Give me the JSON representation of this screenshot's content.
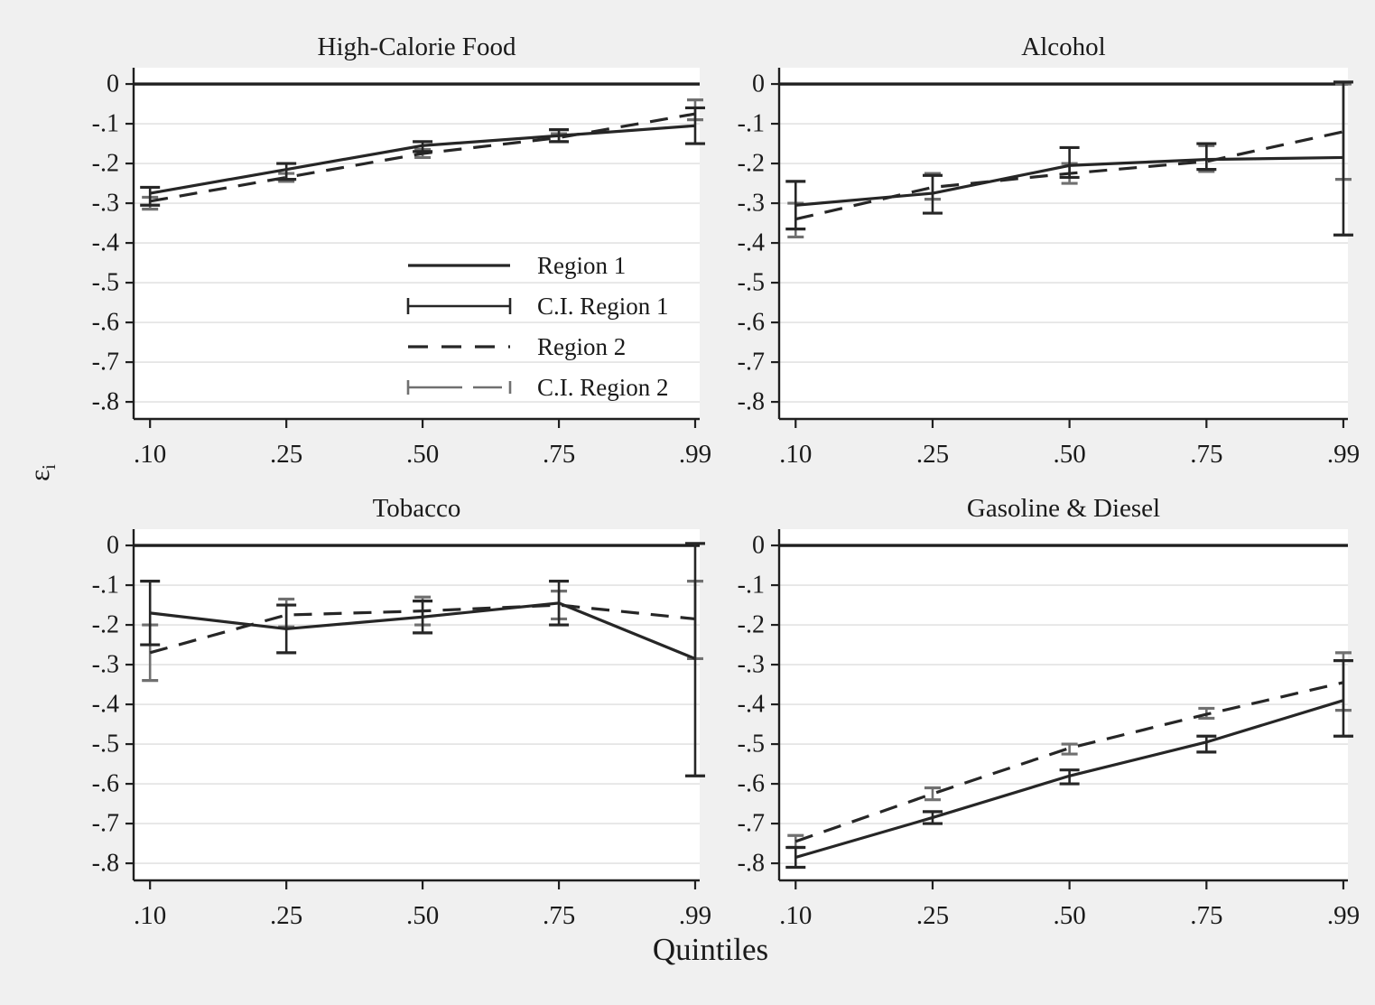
{
  "figure": {
    "x_axis_label": "Quintiles",
    "y_axis_label": {
      "symbol": "ε",
      "subscript": "i"
    },
    "background_color": "#f0f0f0",
    "plot_background_color": "#ffffff"
  },
  "colors": {
    "dark_line": "#262626",
    "gray_ci": "#707070",
    "gridline": "#e3e3e3",
    "axis": "#1f1f1f",
    "zero_line": "#1f1f1f",
    "text": "#1a1a1a"
  },
  "legend": {
    "location": "inside lower-right of first panel",
    "items": [
      {
        "label": "Region 1",
        "style": "solid",
        "color": "dark"
      },
      {
        "label": "C.I. Region 1",
        "style": "capped-solid",
        "color": "dark"
      },
      {
        "label": "Region 2",
        "style": "dashed",
        "color": "dark"
      },
      {
        "label": "C.I. Region 2",
        "style": "capped-dashed",
        "color": "gray"
      }
    ]
  },
  "chart_data": [
    {
      "type": "line",
      "title": "High-Calorie Food",
      "grid": "horizontal",
      "has_legend": true,
      "x_values": [
        0.1,
        0.25,
        0.5,
        0.75,
        0.99
      ],
      "x_tick_labels": [
        ".10",
        ".25",
        ".50",
        ".75",
        ".99"
      ],
      "y_ticks": [
        0,
        -0.1,
        -0.2,
        -0.3,
        -0.4,
        -0.5,
        -0.6,
        -0.7,
        -0.8
      ],
      "y_tick_labels": [
        "0",
        "-.1",
        "-.2",
        "-.3",
        "-.4",
        "-.5",
        "-.6",
        "-.7",
        "-.8"
      ],
      "ylim": [
        0.041,
        -0.843
      ],
      "series": [
        {
          "name": "Region 1",
          "line": "solid",
          "color": "dark",
          "values": [
            -0.275,
            -0.215,
            -0.155,
            -0.13,
            -0.105
          ],
          "ci_low": [
            -0.305,
            -0.24,
            -0.17,
            -0.145,
            -0.15
          ],
          "ci_high": [
            -0.26,
            -0.2,
            -0.145,
            -0.115,
            -0.06
          ]
        },
        {
          "name": "Region 2",
          "line": "dashed",
          "color": "dark",
          "ci_color": "gray",
          "values": [
            -0.295,
            -0.235,
            -0.175,
            -0.135,
            -0.075
          ],
          "ci_low": [
            -0.315,
            -0.245,
            -0.185,
            -0.145,
            -0.09
          ],
          "ci_high": [
            -0.285,
            -0.225,
            -0.165,
            -0.125,
            -0.04
          ]
        }
      ]
    },
    {
      "type": "line",
      "title": "Alcohol",
      "grid": "horizontal",
      "has_legend": false,
      "x_values": [
        0.1,
        0.25,
        0.5,
        0.75,
        0.99
      ],
      "x_tick_labels": [
        ".10",
        ".25",
        ".50",
        ".75",
        ".99"
      ],
      "y_ticks": [
        0,
        -0.1,
        -0.2,
        -0.3,
        -0.4,
        -0.5,
        -0.6,
        -0.7,
        -0.8
      ],
      "y_tick_labels": [
        "0",
        "-.1",
        "-.2",
        "-.3",
        "-.4",
        "-.5",
        "-.6",
        "-.7",
        "-.8"
      ],
      "ylim": [
        0.041,
        -0.843
      ],
      "series": [
        {
          "name": "Region 1",
          "line": "solid",
          "color": "dark",
          "values": [
            -0.305,
            -0.275,
            -0.205,
            -0.19,
            -0.185
          ],
          "ci_low": [
            -0.365,
            -0.325,
            -0.235,
            -0.215,
            -0.38
          ],
          "ci_high": [
            -0.245,
            -0.23,
            -0.16,
            -0.15,
            0.005
          ]
        },
        {
          "name": "Region 2",
          "line": "dashed",
          "color": "dark",
          "ci_color": "gray",
          "values": [
            -0.34,
            -0.26,
            -0.225,
            -0.195,
            -0.12
          ],
          "ci_low": [
            -0.385,
            -0.29,
            -0.25,
            -0.22,
            -0.24
          ],
          "ci_high": [
            -0.3,
            -0.225,
            -0.2,
            -0.155,
            0.0
          ]
        }
      ]
    },
    {
      "type": "line",
      "title": "Tobacco",
      "grid": "horizontal",
      "has_legend": false,
      "x_values": [
        0.1,
        0.25,
        0.5,
        0.75,
        0.99
      ],
      "x_tick_labels": [
        ".10",
        ".25",
        ".50",
        ".75",
        ".99"
      ],
      "y_ticks": [
        0,
        -0.1,
        -0.2,
        -0.3,
        -0.4,
        -0.5,
        -0.6,
        -0.7,
        -0.8
      ],
      "y_tick_labels": [
        "0",
        "-.1",
        "-.2",
        "-.3",
        "-.4",
        "-.5",
        "-.6",
        "-.7",
        "-.8"
      ],
      "ylim": [
        0.041,
        -0.843
      ],
      "series": [
        {
          "name": "Region 1",
          "line": "solid",
          "color": "dark",
          "values": [
            -0.17,
            -0.21,
            -0.18,
            -0.145,
            -0.285
          ],
          "ci_low": [
            -0.25,
            -0.27,
            -0.22,
            -0.2,
            -0.58
          ],
          "ci_high": [
            -0.09,
            -0.15,
            -0.14,
            -0.09,
            0.005
          ]
        },
        {
          "name": "Region 2",
          "line": "dashed",
          "color": "dark",
          "ci_color": "gray",
          "values": [
            -0.27,
            -0.175,
            -0.165,
            -0.15,
            -0.185
          ],
          "ci_low": [
            -0.34,
            -0.205,
            -0.2,
            -0.185,
            -0.285
          ],
          "ci_high": [
            -0.2,
            -0.135,
            -0.13,
            -0.115,
            -0.09
          ]
        }
      ]
    },
    {
      "type": "line",
      "title": "Gasoline & Diesel",
      "grid": "horizontal",
      "has_legend": false,
      "x_values": [
        0.1,
        0.25,
        0.5,
        0.75,
        0.99
      ],
      "x_tick_labels": [
        ".10",
        ".25",
        ".50",
        ".75",
        ".99"
      ],
      "y_ticks": [
        0,
        -0.1,
        -0.2,
        -0.3,
        -0.4,
        -0.5,
        -0.6,
        -0.7,
        -0.8
      ],
      "y_tick_labels": [
        "0",
        "-.1",
        "-.2",
        "-.3",
        "-.4",
        "-.5",
        "-.6",
        "-.7",
        "-.8"
      ],
      "ylim": [
        0.041,
        -0.843
      ],
      "series": [
        {
          "name": "Region 1",
          "line": "solid",
          "color": "dark",
          "values": [
            -0.785,
            -0.685,
            -0.58,
            -0.495,
            -0.39
          ],
          "ci_low": [
            -0.81,
            -0.7,
            -0.6,
            -0.52,
            -0.48
          ],
          "ci_high": [
            -0.76,
            -0.67,
            -0.565,
            -0.48,
            -0.29
          ]
        },
        {
          "name": "Region 2",
          "line": "dashed",
          "color": "dark",
          "ci_color": "gray",
          "values": [
            -0.745,
            -0.625,
            -0.51,
            -0.425,
            -0.345
          ],
          "ci_low": [
            -0.76,
            -0.64,
            -0.525,
            -0.435,
            -0.415
          ],
          "ci_high": [
            -0.73,
            -0.61,
            -0.5,
            -0.41,
            -0.27
          ]
        }
      ]
    }
  ]
}
